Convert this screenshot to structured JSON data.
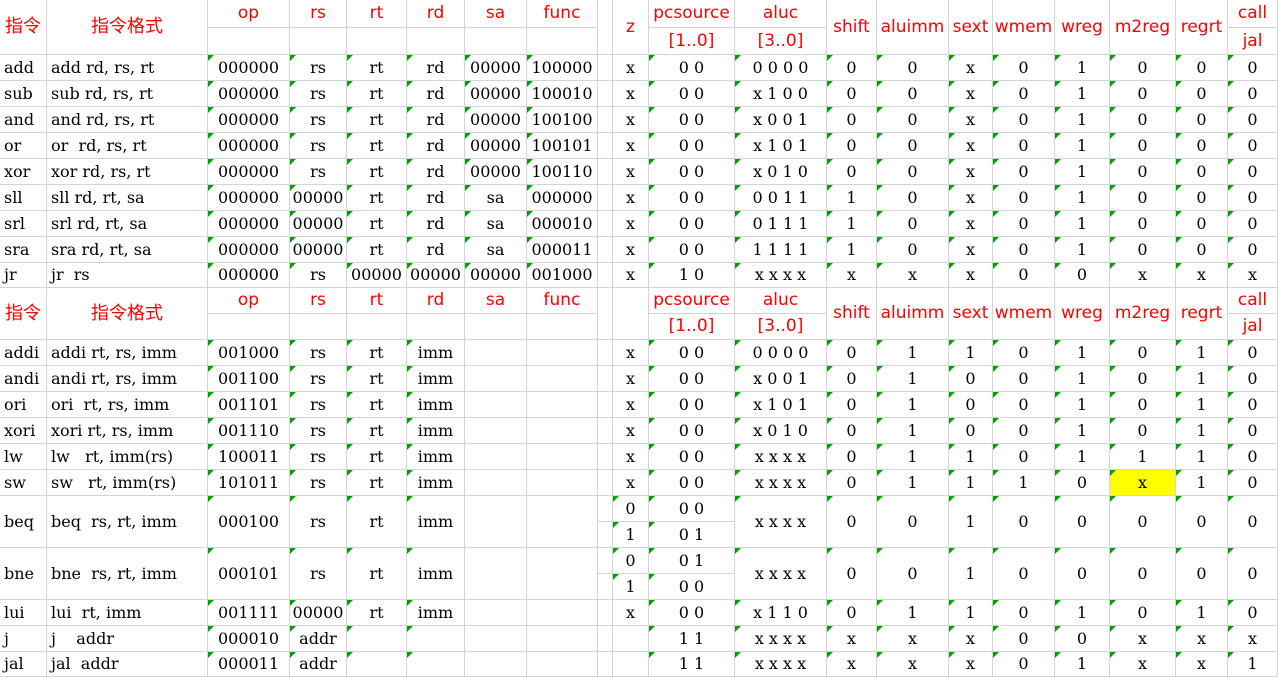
{
  "header_top": {
    "instr": "指令",
    "format": "指令格式",
    "op": "op",
    "rs": "rs",
    "rt": "rt",
    "rd": "rd",
    "sa": "sa",
    "func": "func",
    "z": "z",
    "pcsource": "pcsource",
    "pcsource_bits": "[1..0]",
    "aluc": "aluc",
    "aluc_bits": "[3..0]",
    "shift": "shift",
    "aluimm": "aluimm",
    "sext": "sext",
    "wmem": "wmem",
    "wreg": "wreg",
    "m2reg": "m2reg",
    "regrt": "regrt",
    "call": "call",
    "jal": "jal"
  },
  "header_bottom": {
    "instr": "指令",
    "format": "指令格式",
    "op": "op",
    "rs": "rs",
    "rt": "rt",
    "rd": "rd",
    "sa": "sa",
    "func": "func",
    "pcsource": "pcsource",
    "pcsource_bits": "[1..0]",
    "aluc": "aluc",
    "aluc_bits": "[3..0]",
    "shift": "shift",
    "aluimm": "aluimm",
    "sext": "sext",
    "wmem": "wmem",
    "wreg": "wreg",
    "m2reg": "m2reg",
    "regrt": "regrt",
    "call": "call",
    "jal": "jal"
  },
  "r_rows": [
    {
      "instr": "add",
      "format": "add rd, rs, rt",
      "op": "000000",
      "rs": "rs",
      "rt": "rt",
      "rd": "rd",
      "sa": "00000",
      "func": "100000",
      "z": "x",
      "pcsource": "0 0",
      "aluc": "0 0 0 0",
      "shift": "0",
      "aluimm": "0",
      "sext": "x",
      "wmem": "0",
      "wreg": "1",
      "m2reg": "0",
      "regrt": "0",
      "call": "0"
    },
    {
      "instr": "sub",
      "format": "sub rd, rs, rt",
      "op": "000000",
      "rs": "rs",
      "rt": "rt",
      "rd": "rd",
      "sa": "00000",
      "func": "100010",
      "z": "x",
      "pcsource": "0 0",
      "aluc": "x 1 0 0",
      "shift": "0",
      "aluimm": "0",
      "sext": "x",
      "wmem": "0",
      "wreg": "1",
      "m2reg": "0",
      "regrt": "0",
      "call": "0"
    },
    {
      "instr": "and",
      "format": "and rd, rs, rt",
      "op": "000000",
      "rs": "rs",
      "rt": "rt",
      "rd": "rd",
      "sa": "00000",
      "func": "100100",
      "z": "x",
      "pcsource": "0 0",
      "aluc": "x 0 0 1",
      "shift": "0",
      "aluimm": "0",
      "sext": "x",
      "wmem": "0",
      "wreg": "1",
      "m2reg": "0",
      "regrt": "0",
      "call": "0"
    },
    {
      "instr": "or",
      "format": "or  rd, rs, rt",
      "op": "000000",
      "rs": "rs",
      "rt": "rt",
      "rd": "rd",
      "sa": "00000",
      "func": "100101",
      "z": "x",
      "pcsource": "0 0",
      "aluc": "x 1 0 1",
      "shift": "0",
      "aluimm": "0",
      "sext": "x",
      "wmem": "0",
      "wreg": "1",
      "m2reg": "0",
      "regrt": "0",
      "call": "0"
    },
    {
      "instr": "xor",
      "format": "xor rd, rs, rt",
      "op": "000000",
      "rs": "rs",
      "rt": "rt",
      "rd": "rd",
      "sa": "00000",
      "func": "100110",
      "z": "x",
      "pcsource": "0 0",
      "aluc": "x 0 1 0",
      "shift": "0",
      "aluimm": "0",
      "sext": "x",
      "wmem": "0",
      "wreg": "1",
      "m2reg": "0",
      "regrt": "0",
      "call": "0"
    },
    {
      "instr": "sll",
      "format": "sll rd, rt, sa",
      "op": "000000",
      "rs": "00000",
      "rt": "rt",
      "rd": "rd",
      "sa": "sa",
      "func": "000000",
      "z": "x",
      "pcsource": "0 0",
      "aluc": "0 0 1 1",
      "shift": "1",
      "aluimm": "0",
      "sext": "x",
      "wmem": "0",
      "wreg": "1",
      "m2reg": "0",
      "regrt": "0",
      "call": "0"
    },
    {
      "instr": "srl",
      "format": "srl rd, rt, sa",
      "op": "000000",
      "rs": "00000",
      "rt": "rt",
      "rd": "rd",
      "sa": "sa",
      "func": "000010",
      "z": "x",
      "pcsource": "0 0",
      "aluc": "0 1 1 1",
      "shift": "1",
      "aluimm": "0",
      "sext": "x",
      "wmem": "0",
      "wreg": "1",
      "m2reg": "0",
      "regrt": "0",
      "call": "0"
    },
    {
      "instr": "sra",
      "format": "sra rd, rt, sa",
      "op": "000000",
      "rs": "00000",
      "rt": "rt",
      "rd": "rd",
      "sa": "sa",
      "func": "000011",
      "z": "x",
      "pcsource": "0 0",
      "aluc": "1 1 1 1",
      "shift": "1",
      "aluimm": "0",
      "sext": "x",
      "wmem": "0",
      "wreg": "1",
      "m2reg": "0",
      "regrt": "0",
      "call": "0"
    },
    {
      "instr": "jr",
      "format": "jr  rs",
      "op": "000000",
      "rs": "rs",
      "rt": "00000",
      "rd": "00000",
      "sa": "00000",
      "func": "001000",
      "z": "x",
      "pcsource": "1 0",
      "aluc": "x x x x",
      "shift": "x",
      "aluimm": "x",
      "sext": "x",
      "wmem": "0",
      "wreg": "0",
      "m2reg": "x",
      "regrt": "x",
      "call": "x"
    }
  ],
  "i_rows": [
    {
      "instr": "addi",
      "format": "addi rt, rs, imm",
      "op": "001000",
      "rs": "rs",
      "rt": "rt",
      "rd": "imm",
      "z": [
        "x"
      ],
      "pcsource": [
        "0 0"
      ],
      "aluc": "0 0 0 0",
      "shift": "0",
      "aluimm": "1",
      "sext": "1",
      "wmem": "0",
      "wreg": "1",
      "m2reg": "0",
      "regrt": "1",
      "call": "0"
    },
    {
      "instr": "andi",
      "format": "andi rt, rs, imm",
      "op": "001100",
      "rs": "rs",
      "rt": "rt",
      "rd": "imm",
      "z": [
        "x"
      ],
      "pcsource": [
        "0 0"
      ],
      "aluc": "x 0 0 1",
      "shift": "0",
      "aluimm": "1",
      "sext": "0",
      "wmem": "0",
      "wreg": "1",
      "m2reg": "0",
      "regrt": "1",
      "call": "0"
    },
    {
      "instr": "ori",
      "format": "ori  rt, rs, imm",
      "op": "001101",
      "rs": "rs",
      "rt": "rt",
      "rd": "imm",
      "z": [
        "x"
      ],
      "pcsource": [
        "0 0"
      ],
      "aluc": "x 1 0 1",
      "shift": "0",
      "aluimm": "1",
      "sext": "0",
      "wmem": "0",
      "wreg": "1",
      "m2reg": "0",
      "regrt": "1",
      "call": "0"
    },
    {
      "instr": "xori",
      "format": "xori rt, rs, imm",
      "op": "001110",
      "rs": "rs",
      "rt": "rt",
      "rd": "imm",
      "z": [
        "x"
      ],
      "pcsource": [
        "0 0"
      ],
      "aluc": "x 0 1 0",
      "shift": "0",
      "aluimm": "1",
      "sext": "0",
      "wmem": "0",
      "wreg": "1",
      "m2reg": "0",
      "regrt": "1",
      "call": "0"
    },
    {
      "instr": "lw",
      "format": "lw   rt, imm(rs)",
      "op": "100011",
      "rs": "rs",
      "rt": "rt",
      "rd": "imm",
      "z": [
        "x"
      ],
      "pcsource": [
        "0 0"
      ],
      "aluc": "x x x x",
      "shift": "0",
      "aluimm": "1",
      "sext": "1",
      "wmem": "0",
      "wreg": "1",
      "m2reg": "1",
      "regrt": "1",
      "call": "0"
    },
    {
      "instr": "sw",
      "format": "sw   rt, imm(rs)",
      "op": "101011",
      "rs": "rs",
      "rt": "rt",
      "rd": "imm",
      "z": [
        "x"
      ],
      "pcsource": [
        "0 0"
      ],
      "aluc": "x x x x",
      "shift": "0",
      "aluimm": "1",
      "sext": "1",
      "wmem": "1",
      "wreg": "0",
      "m2reg": "x",
      "regrt": "1",
      "call": "0",
      "highlight": "m2reg"
    },
    {
      "instr": "beq",
      "format": "beq  rs, rt, imm",
      "op": "000100",
      "rs": "rs",
      "rt": "rt",
      "rd": "imm",
      "z": [
        "0",
        "1"
      ],
      "pcsource": [
        "0 0",
        "0 1"
      ],
      "aluc": "x x x x",
      "shift": "0",
      "aluimm": "0",
      "sext": "1",
      "wmem": "0",
      "wreg": "0",
      "m2reg": "0",
      "regrt": "0",
      "call": "0"
    },
    {
      "instr": "bne",
      "format": "bne  rs, rt, imm",
      "op": "000101",
      "rs": "rs",
      "rt": "rt",
      "rd": "imm",
      "z": [
        "0",
        "1"
      ],
      "pcsource": [
        "0 1",
        "0 0"
      ],
      "aluc": "x x x x",
      "shift": "0",
      "aluimm": "0",
      "sext": "1",
      "wmem": "0",
      "wreg": "0",
      "m2reg": "0",
      "regrt": "0",
      "call": "0"
    },
    {
      "instr": "lui",
      "format": "lui  rt, imm",
      "op": "001111",
      "rs": "00000",
      "rt": "rt",
      "rd": "imm",
      "z": [
        "x"
      ],
      "pcsource": [
        "0 0"
      ],
      "aluc": "x 1 1 0",
      "shift": "0",
      "aluimm": "1",
      "sext": "1",
      "wmem": "0",
      "wreg": "1",
      "m2reg": "0",
      "regrt": "1",
      "call": "0"
    },
    {
      "instr": "j",
      "format": "j    addr",
      "op": "000010",
      "rs": "addr",
      "rt": "",
      "rd": "",
      "z": [
        ""
      ],
      "pcsource": [
        "1 1"
      ],
      "aluc": "x x x x",
      "shift": "x",
      "aluimm": "x",
      "sext": "x",
      "wmem": "0",
      "wreg": "0",
      "m2reg": "x",
      "regrt": "x",
      "call": "x"
    },
    {
      "instr": "jal",
      "format": "jal  addr",
      "op": "000011",
      "rs": "addr",
      "rt": "",
      "rd": "",
      "z": [
        ""
      ],
      "pcsource": [
        "1 1"
      ],
      "aluc": "x x x x",
      "shift": "x",
      "aluimm": "x",
      "sext": "x",
      "wmem": "0",
      "wreg": "1",
      "m2reg": "x",
      "regrt": "x",
      "call": "1"
    }
  ]
}
